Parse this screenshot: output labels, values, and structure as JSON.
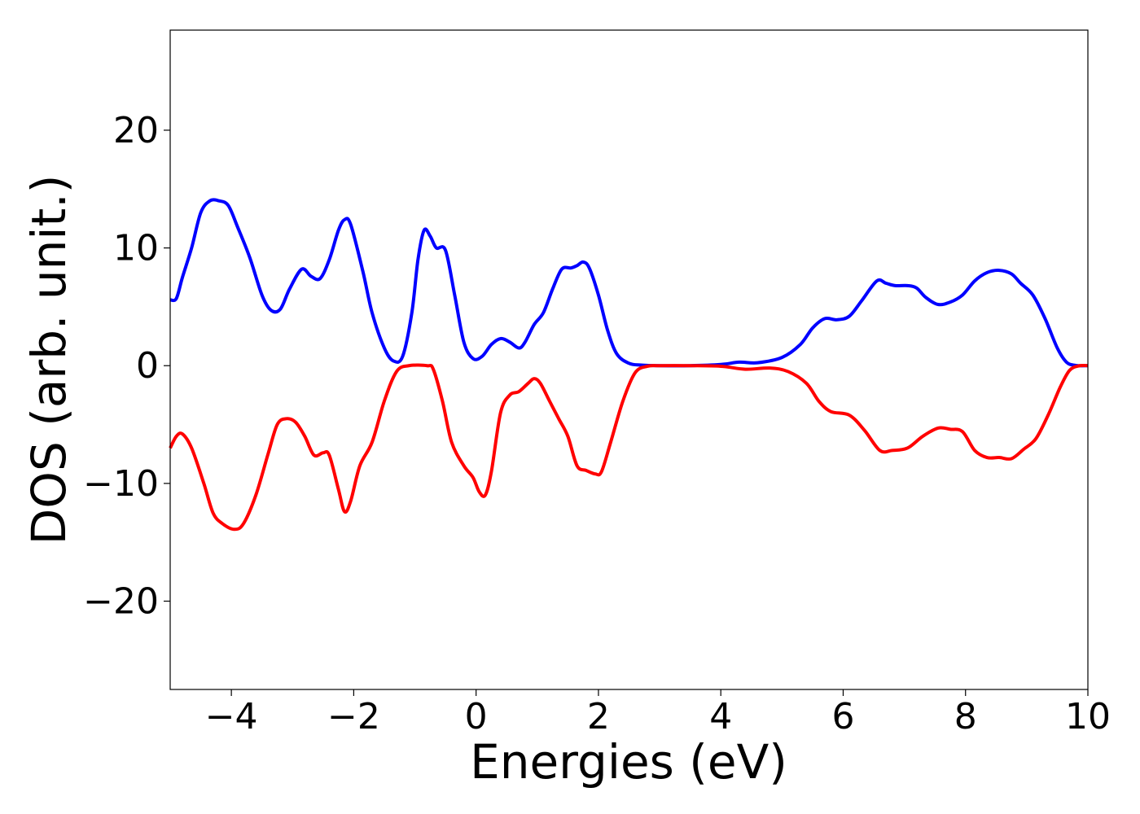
{
  "chart_data": {
    "type": "line",
    "title": "",
    "xlabel": "Energies (eV)",
    "ylabel": "DOS (arb. unit.)",
    "xlim": [
      -5,
      10
    ],
    "ylim": [
      -27.5,
      28.5
    ],
    "grid": false,
    "legend": "none",
    "x_ticks": [
      -4,
      -2,
      0,
      2,
      4,
      6,
      8,
      10
    ],
    "y_ticks": [
      -20,
      -10,
      0,
      10,
      20
    ],
    "x_tick_labels": [
      "−4",
      "−2",
      "0",
      "2",
      "4",
      "6",
      "8",
      "10"
    ],
    "y_tick_labels": [
      "−20",
      "−10",
      "0",
      "10",
      "20"
    ],
    "series": [
      {
        "color": "#0000ff",
        "points": [
          [
            -5,
            5.6
          ],
          [
            -4.9,
            5.7
          ],
          [
            -4.8,
            7.5
          ],
          [
            -4.65,
            10.0
          ],
          [
            -4.5,
            13.0
          ],
          [
            -4.35,
            14.0
          ],
          [
            -4.2,
            14.0
          ],
          [
            -4.05,
            13.6
          ],
          [
            -3.9,
            11.8
          ],
          [
            -3.7,
            9.2
          ],
          [
            -3.5,
            6.0
          ],
          [
            -3.35,
            4.7
          ],
          [
            -3.2,
            4.8
          ],
          [
            -3.05,
            6.5
          ],
          [
            -2.85,
            8.2
          ],
          [
            -2.7,
            7.6
          ],
          [
            -2.55,
            7.4
          ],
          [
            -2.4,
            9.0
          ],
          [
            -2.25,
            11.5
          ],
          [
            -2.15,
            12.4
          ],
          [
            -2.05,
            12.0
          ],
          [
            -1.85,
            8.0
          ],
          [
            -1.7,
            4.5
          ],
          [
            -1.5,
            1.5
          ],
          [
            -1.35,
            0.4
          ],
          [
            -1.2,
            0.8
          ],
          [
            -1.05,
            4.5
          ],
          [
            -0.95,
            9.0
          ],
          [
            -0.85,
            11.5
          ],
          [
            -0.75,
            11.0
          ],
          [
            -0.65,
            10.0
          ],
          [
            -0.5,
            9.8
          ],
          [
            -0.35,
            6.0
          ],
          [
            -0.2,
            2.0
          ],
          [
            -0.05,
            0.6
          ],
          [
            0.1,
            0.8
          ],
          [
            0.25,
            1.8
          ],
          [
            0.4,
            2.3
          ],
          [
            0.55,
            2.0
          ],
          [
            0.7,
            1.5
          ],
          [
            0.8,
            2.0
          ],
          [
            0.95,
            3.5
          ],
          [
            1.1,
            4.5
          ],
          [
            1.25,
            6.5
          ],
          [
            1.4,
            8.2
          ],
          [
            1.55,
            8.3
          ],
          [
            1.65,
            8.5
          ],
          [
            1.75,
            8.8
          ],
          [
            1.85,
            8.3
          ],
          [
            2.0,
            6.0
          ],
          [
            2.15,
            3.0
          ],
          [
            2.3,
            1.0
          ],
          [
            2.5,
            0.2
          ],
          [
            2.7,
            0.05
          ],
          [
            3.0,
            0.0
          ],
          [
            3.5,
            0.0
          ],
          [
            4.0,
            0.1
          ],
          [
            4.3,
            0.3
          ],
          [
            4.6,
            0.25
          ],
          [
            5.0,
            0.7
          ],
          [
            5.3,
            1.8
          ],
          [
            5.5,
            3.2
          ],
          [
            5.7,
            4.0
          ],
          [
            5.9,
            3.9
          ],
          [
            6.1,
            4.2
          ],
          [
            6.3,
            5.5
          ],
          [
            6.55,
            7.2
          ],
          [
            6.7,
            7.0
          ],
          [
            6.85,
            6.8
          ],
          [
            7.05,
            6.8
          ],
          [
            7.2,
            6.6
          ],
          [
            7.35,
            5.8
          ],
          [
            7.55,
            5.2
          ],
          [
            7.75,
            5.4
          ],
          [
            7.95,
            6.0
          ],
          [
            8.15,
            7.2
          ],
          [
            8.35,
            7.9
          ],
          [
            8.55,
            8.1
          ],
          [
            8.75,
            7.8
          ],
          [
            8.9,
            7.0
          ],
          [
            9.1,
            6.0
          ],
          [
            9.3,
            4.0
          ],
          [
            9.5,
            1.5
          ],
          [
            9.65,
            0.3
          ],
          [
            9.8,
            0.02
          ],
          [
            10,
            0.0
          ]
        ]
      },
      {
        "color": "#ff0000",
        "points": [
          [
            -5,
            -7.0
          ],
          [
            -4.9,
            -6.0
          ],
          [
            -4.8,
            -5.8
          ],
          [
            -4.65,
            -7.0
          ],
          [
            -4.45,
            -10.0
          ],
          [
            -4.3,
            -12.5
          ],
          [
            -4.15,
            -13.4
          ],
          [
            -3.95,
            -13.9
          ],
          [
            -3.8,
            -13.4
          ],
          [
            -3.6,
            -11.0
          ],
          [
            -3.4,
            -7.5
          ],
          [
            -3.25,
            -5.0
          ],
          [
            -3.1,
            -4.5
          ],
          [
            -2.95,
            -4.8
          ],
          [
            -2.8,
            -6.0
          ],
          [
            -2.65,
            -7.6
          ],
          [
            -2.5,
            -7.4
          ],
          [
            -2.4,
            -7.6
          ],
          [
            -2.25,
            -10.5
          ],
          [
            -2.15,
            -12.4
          ],
          [
            -2.05,
            -11.5
          ],
          [
            -1.9,
            -8.5
          ],
          [
            -1.7,
            -6.5
          ],
          [
            -1.5,
            -3.0
          ],
          [
            -1.3,
            -0.5
          ],
          [
            -1.1,
            0.0
          ],
          [
            -0.8,
            0.0
          ],
          [
            -0.7,
            -0.3
          ],
          [
            -0.55,
            -3.0
          ],
          [
            -0.4,
            -6.5
          ],
          [
            -0.2,
            -8.5
          ],
          [
            -0.05,
            -9.5
          ],
          [
            0.05,
            -10.7
          ],
          [
            0.15,
            -11.0
          ],
          [
            0.25,
            -9.0
          ],
          [
            0.4,
            -4.0
          ],
          [
            0.55,
            -2.5
          ],
          [
            0.7,
            -2.2
          ],
          [
            0.85,
            -1.5
          ],
          [
            0.95,
            -1.1
          ],
          [
            1.05,
            -1.5
          ],
          [
            1.2,
            -3.0
          ],
          [
            1.35,
            -4.5
          ],
          [
            1.5,
            -6.0
          ],
          [
            1.65,
            -8.5
          ],
          [
            1.8,
            -8.9
          ],
          [
            1.95,
            -9.2
          ],
          [
            2.05,
            -9.0
          ],
          [
            2.2,
            -6.5
          ],
          [
            2.4,
            -3.0
          ],
          [
            2.6,
            -0.6
          ],
          [
            2.8,
            -0.05
          ],
          [
            3.0,
            0.0
          ],
          [
            3.5,
            0.0
          ],
          [
            4.0,
            -0.05
          ],
          [
            4.4,
            -0.3
          ],
          [
            4.8,
            -0.2
          ],
          [
            5.1,
            -0.5
          ],
          [
            5.4,
            -1.5
          ],
          [
            5.6,
            -3.0
          ],
          [
            5.8,
            -3.9
          ],
          [
            6.1,
            -4.2
          ],
          [
            6.35,
            -5.5
          ],
          [
            6.6,
            -7.2
          ],
          [
            6.8,
            -7.2
          ],
          [
            7.05,
            -7.0
          ],
          [
            7.3,
            -6.0
          ],
          [
            7.55,
            -5.3
          ],
          [
            7.75,
            -5.4
          ],
          [
            7.95,
            -5.6
          ],
          [
            8.15,
            -7.2
          ],
          [
            8.35,
            -7.8
          ],
          [
            8.55,
            -7.8
          ],
          [
            8.75,
            -7.9
          ],
          [
            8.95,
            -7.1
          ],
          [
            9.15,
            -6.2
          ],
          [
            9.35,
            -4.2
          ],
          [
            9.55,
            -1.8
          ],
          [
            9.7,
            -0.4
          ],
          [
            9.85,
            -0.02
          ],
          [
            10,
            0.0
          ]
        ]
      }
    ]
  }
}
